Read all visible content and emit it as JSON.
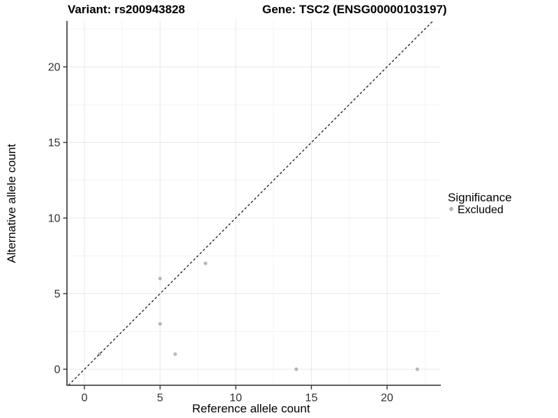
{
  "header": {
    "variant_title": "Variant: rs200943828",
    "gene_title": "Gene: TSC2 (ENSG00000103197)"
  },
  "legend": {
    "title": "Significance",
    "items": [
      {
        "label": "Excluded",
        "color": "#b8b8b8"
      }
    ]
  },
  "chart_data": {
    "type": "scatter",
    "title": "Variant: rs200943828    Gene: TSC2 (ENSG00000103197)",
    "xlabel": "Reference allele count",
    "ylabel": "Alternative allele count",
    "xlim": [
      -1.2,
      23.46
    ],
    "ylim": [
      -1.06,
      23.04
    ],
    "x_ticks": [
      0,
      5,
      10,
      15,
      20
    ],
    "y_ticks": [
      0,
      5,
      10,
      15,
      20
    ],
    "x_minor_ticks": [
      2.5,
      7.5,
      12.5,
      17.5,
      22.5
    ],
    "y_minor_ticks": [
      2.5,
      7.5,
      12.5,
      17.5,
      22.5
    ],
    "grid": true,
    "legend_position": "right",
    "series": [
      {
        "name": "Excluded",
        "color": "#b8b8b8",
        "points": [
          {
            "x": 1,
            "y": 1
          },
          {
            "x": 5,
            "y": 3
          },
          {
            "x": 5,
            "y": 6
          },
          {
            "x": 6,
            "y": 1
          },
          {
            "x": 8,
            "y": 7
          },
          {
            "x": 14,
            "y": 0
          },
          {
            "x": 22,
            "y": 0
          }
        ]
      }
    ],
    "reference_line": {
      "type": "identity",
      "slope": 1,
      "intercept": 0,
      "style": "dashed",
      "color": "#1a1a1a"
    },
    "colors": {
      "point": "#b8b8b8",
      "reference_line": "#1a1a1a",
      "grid_major": "#e8e8e8",
      "grid_minor": "#f4f4f4",
      "axis_line": "#4a4a4a",
      "tick_mark": "#333333",
      "background": "#ffffff"
    }
  }
}
